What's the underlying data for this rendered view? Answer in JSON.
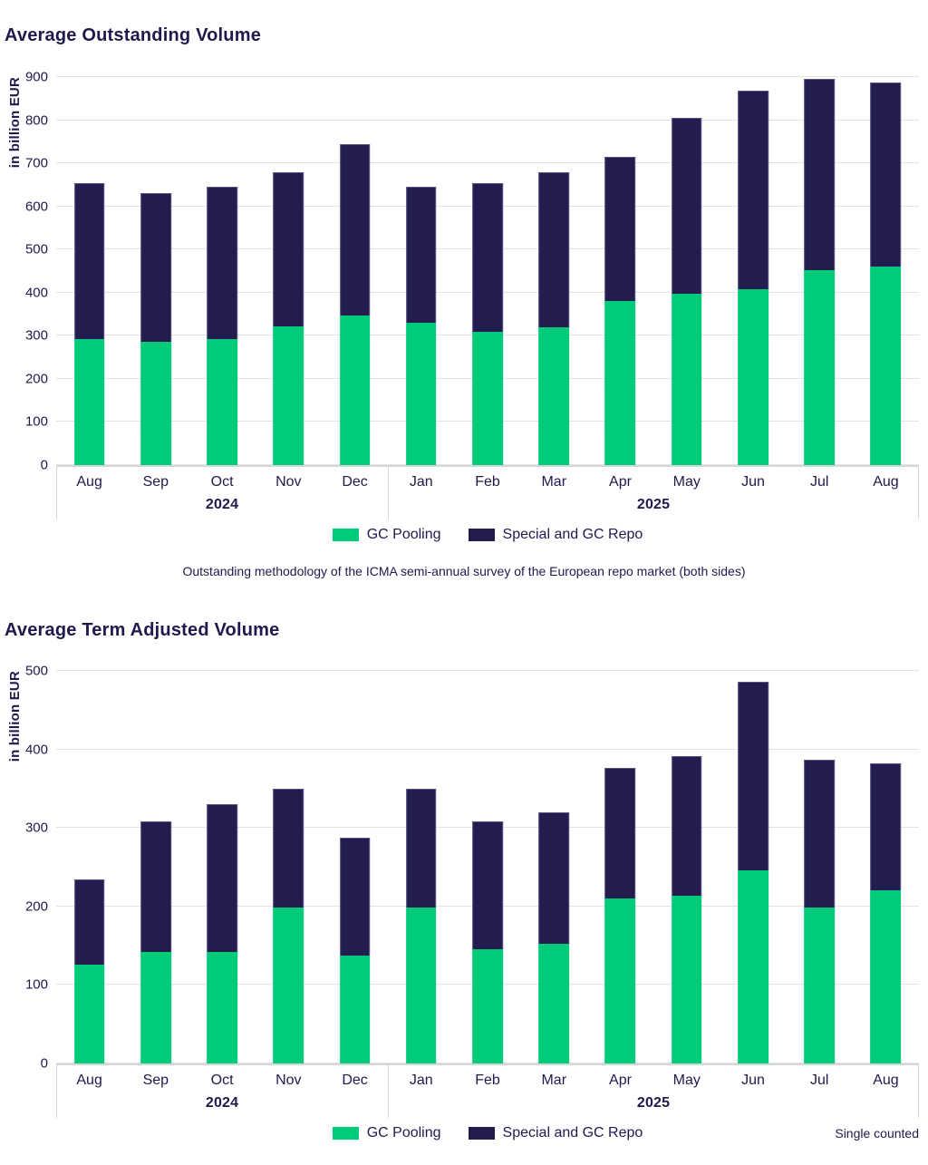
{
  "page": {
    "background": "#FFFFFF",
    "text_color": "#1F1A4E"
  },
  "colors": {
    "gc_pooling_green": "#00CB78",
    "special_repo_navy": "#231D4F",
    "gridline_gray": "#E3E3E3",
    "axis_gray": "#D6D6D6"
  },
  "chart_data": [
    {
      "type": "bar",
      "stacked": true,
      "title": "Average Outstanding Volume",
      "ylabel": "in billion EUR",
      "ylim": [
        0,
        900
      ],
      "ytick_step": 100,
      "grid": true,
      "legend_position": "bottom-center",
      "categories": [
        "Aug",
        "Sep",
        "Oct",
        "Nov",
        "Dec",
        "Jan",
        "Feb",
        "Mar",
        "Apr",
        "May",
        "Jun",
        "Jul",
        "Aug"
      ],
      "year_groups": [
        {
          "label": "2024",
          "start": 0,
          "end": 4
        },
        {
          "label": "2025",
          "start": 5,
          "end": 12
        }
      ],
      "series": [
        {
          "name": "GC Pooling",
          "color": "#00CB78",
          "values": [
            293,
            286,
            293,
            322,
            347,
            330,
            310,
            319,
            380,
            398,
            408,
            452,
            460
          ]
        },
        {
          "name": "Special and GC Repo",
          "color": "#231D4F",
          "values": [
            362,
            344,
            352,
            358,
            398,
            315,
            345,
            361,
            336,
            408,
            460,
            443,
            427
          ]
        }
      ],
      "totals": [
        655,
        630,
        645,
        680,
        745,
        645,
        655,
        680,
        716,
        806,
        868,
        895,
        887
      ],
      "caption": "Outstanding methodology of the ICMA semi-annual survey of the European repo market (both sides)"
    },
    {
      "type": "bar",
      "stacked": true,
      "title": "Average Term Adjusted Volume",
      "ylabel": "in billion EUR",
      "ylim": [
        0,
        500
      ],
      "ytick_step": 100,
      "grid": true,
      "legend_position": "bottom-center",
      "categories": [
        "Aug",
        "Sep",
        "Oct",
        "Nov",
        "Dec",
        "Jan",
        "Feb",
        "Mar",
        "Apr",
        "May",
        "Jun",
        "Jul",
        "Aug"
      ],
      "year_groups": [
        {
          "label": "2024",
          "start": 0,
          "end": 4
        },
        {
          "label": "2025",
          "start": 5,
          "end": 12
        }
      ],
      "series": [
        {
          "name": "GC Pooling",
          "color": "#00CB78",
          "values": [
            126,
            142,
            142,
            199,
            137,
            199,
            146,
            152,
            210,
            214,
            246,
            199,
            220
          ]
        },
        {
          "name": "Special and GC Repo",
          "color": "#231D4F",
          "values": [
            109,
            166,
            188,
            151,
            151,
            151,
            162,
            168,
            166,
            178,
            240,
            188,
            162
          ]
        }
      ],
      "totals": [
        235,
        308,
        330,
        350,
        288,
        350,
        308,
        320,
        376,
        392,
        486,
        387,
        382
      ],
      "note": "Single counted"
    }
  ]
}
